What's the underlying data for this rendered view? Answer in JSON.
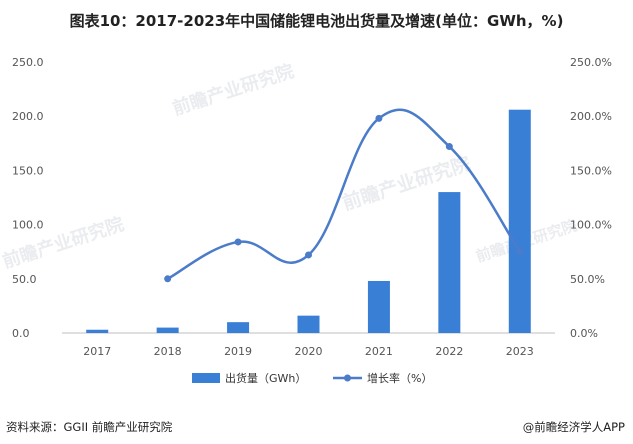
{
  "title": "图表10：2017-2023年中国储能锂电池出货量及增速(单位：GWh，%)",
  "source": "资料来源：GGII 前瞻产业研究院",
  "credit": "@前瞻经济学人APP",
  "watermark": "前瞻产业研究院",
  "colors": {
    "bar": "#3a7fd6",
    "line": "#4a7cc9",
    "axis": "#bfbfbf"
  },
  "chart_data": {
    "type": "bar",
    "categories": [
      "2017",
      "2018",
      "2019",
      "2020",
      "2021",
      "2022",
      "2023"
    ],
    "series": [
      {
        "name": "出货量（GWh）",
        "type": "bar",
        "axis": "left",
        "values": [
          3,
          5,
          10,
          16,
          48,
          130,
          206
        ]
      },
      {
        "name": "增长率（%）",
        "type": "line",
        "axis": "right",
        "values": [
          null,
          50,
          84,
          72,
          198,
          172,
          75
        ]
      }
    ],
    "y_left": {
      "ylim": [
        0,
        250
      ],
      "ticks": [
        "0.0",
        "50.0",
        "100.0",
        "150.0",
        "200.0",
        "250.0"
      ]
    },
    "y_right": {
      "ylim": [
        0,
        250
      ],
      "ticks": [
        "0.0%",
        "50.0%",
        "100.0%",
        "150.0%",
        "200.0%",
        "250.0%"
      ]
    },
    "legend_position": "bottom-center",
    "grid": false
  }
}
